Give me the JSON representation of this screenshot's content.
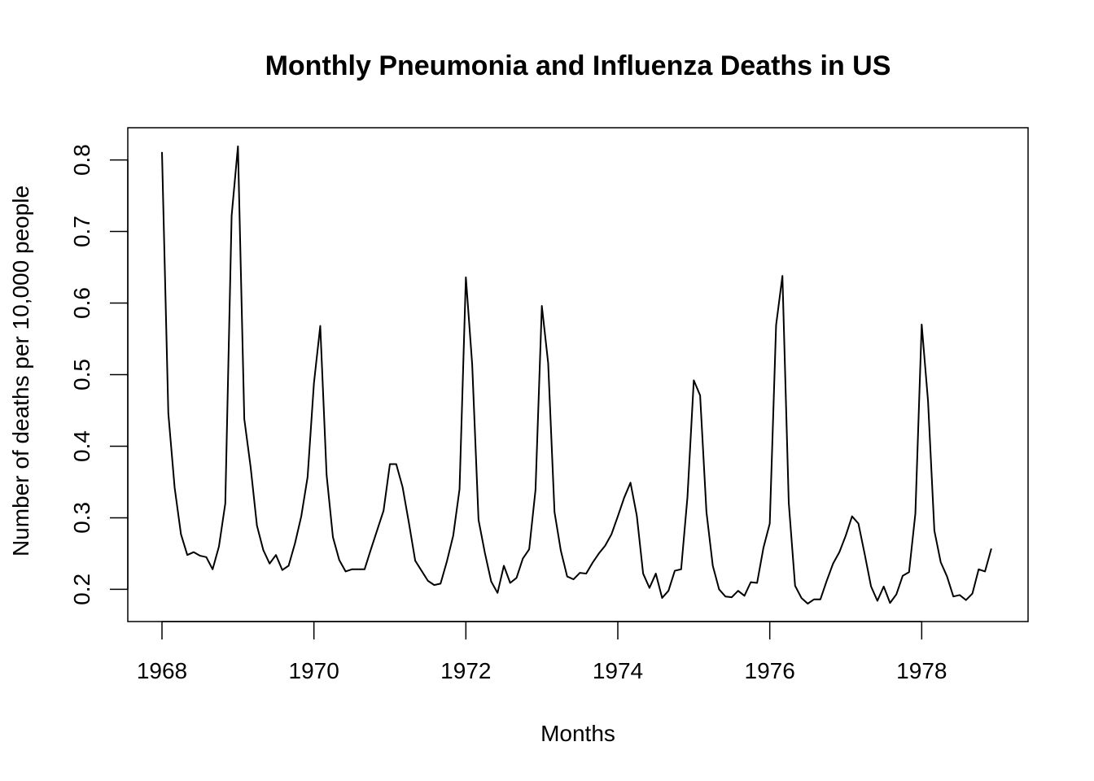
{
  "chart_data": {
    "type": "line",
    "title": "Monthly Pneumonia and Influenza Deaths in US",
    "xlabel": "Months",
    "ylabel": "Number of deaths per 10,000 people",
    "xlim": [
      1967.55,
      1979.4
    ],
    "ylim": [
      0.155,
      0.845
    ],
    "xticks": [
      1968,
      1970,
      1972,
      1974,
      1976,
      1978
    ],
    "xtick_labels": [
      "1968",
      "1970",
      "1972",
      "1974",
      "1976",
      "1978"
    ],
    "yticks": [
      0.2,
      0.3,
      0.4,
      0.5,
      0.6,
      0.7,
      0.8
    ],
    "ytick_labels": [
      "0.2",
      "0.3",
      "0.4",
      "0.5",
      "0.6",
      "0.7",
      "0.8"
    ],
    "grid": false,
    "line_color": "#000000",
    "series": [
      {
        "x_start": 1968,
        "x_step": 0.0833333,
        "values": [
          0.811,
          0.446,
          0.342,
          0.277,
          0.248,
          0.252,
          0.247,
          0.245,
          0.228,
          0.26,
          0.32,
          0.722,
          0.819,
          0.438,
          0.371,
          0.289,
          0.255,
          0.236,
          0.248,
          0.227,
          0.233,
          0.264,
          0.302,
          0.357,
          0.488,
          0.568,
          0.36,
          0.273,
          0.241,
          0.225,
          0.228,
          0.228,
          0.228,
          0.256,
          0.283,
          0.31,
          0.375,
          0.375,
          0.343,
          0.293,
          0.24,
          0.226,
          0.212,
          0.206,
          0.208,
          0.239,
          0.275,
          0.34,
          0.636,
          0.514,
          0.297,
          0.251,
          0.211,
          0.195,
          0.233,
          0.209,
          0.216,
          0.243,
          0.256,
          0.339,
          0.596,
          0.516,
          0.308,
          0.254,
          0.218,
          0.214,
          0.223,
          0.222,
          0.237,
          0.25,
          0.261,
          0.277,
          0.302,
          0.328,
          0.349,
          0.303,
          0.222,
          0.202,
          0.222,
          0.188,
          0.198,
          0.226,
          0.228,
          0.329,
          0.492,
          0.471,
          0.308,
          0.233,
          0.2,
          0.19,
          0.189,
          0.198,
          0.191,
          0.21,
          0.209,
          0.258,
          0.292,
          0.569,
          0.638,
          0.321,
          0.205,
          0.188,
          0.18,
          0.186,
          0.186,
          0.212,
          0.236,
          0.252,
          0.275,
          0.302,
          0.292,
          0.249,
          0.204,
          0.184,
          0.204,
          0.181,
          0.193,
          0.219,
          0.224,
          0.306,
          0.57,
          0.463,
          0.282,
          0.238,
          0.218,
          0.19,
          0.192,
          0.185,
          0.194,
          0.228,
          0.225,
          0.257
        ]
      }
    ]
  }
}
